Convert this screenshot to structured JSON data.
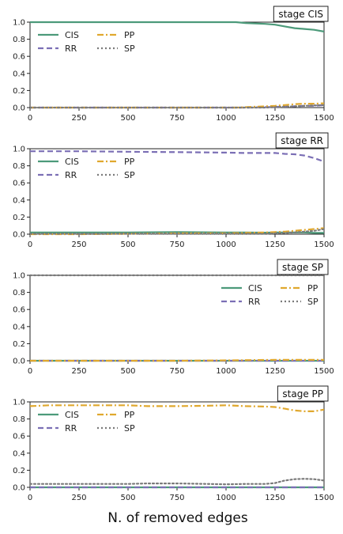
{
  "figure": {
    "xlabel": "N. of removed edges"
  },
  "colors": {
    "CIS": "#4c9a7a",
    "RR": "#7b6fb5",
    "PP": "#e0a82e",
    "SP": "#7a7a7a"
  },
  "chart_data": [
    {
      "type": "line",
      "stage_label": "stage CIS",
      "legend_position": "top-left",
      "xlim": [
        0,
        1500
      ],
      "ylim": [
        0,
        1.0
      ],
      "xticks": [
        0,
        250,
        500,
        750,
        1000,
        1250,
        1500
      ],
      "yticks": [
        0.0,
        0.2,
        0.4,
        0.6,
        0.8,
        1.0
      ],
      "xtick_labels": [
        "0",
        "250",
        "500",
        "750",
        "1000",
        "1250",
        "1500"
      ],
      "ytick_labels": [
        "0.0",
        "0.2",
        "0.4",
        "0.6",
        "0.8",
        "1.0"
      ],
      "x": [
        0,
        250,
        500,
        750,
        1000,
        1050,
        1100,
        1150,
        1200,
        1250,
        1300,
        1350,
        1400,
        1450,
        1500
      ],
      "series": [
        {
          "name": "CIS",
          "style": "solid",
          "values": [
            1.0,
            1.0,
            1.0,
            1.0,
            1.0,
            1.0,
            0.99,
            0.985,
            0.98,
            0.97,
            0.95,
            0.93,
            0.92,
            0.91,
            0.89
          ]
        },
        {
          "name": "RR",
          "style": "dashed",
          "values": [
            0.0,
            0.0,
            0.0,
            0.0,
            0.0,
            0.0,
            0.0,
            0.002,
            0.005,
            0.008,
            0.01,
            0.015,
            0.02,
            0.02,
            0.03
          ]
        },
        {
          "name": "PP",
          "style": "dashdot",
          "values": [
            0.0,
            0.0,
            0.0,
            0.0,
            0.0,
            0.0,
            0.005,
            0.01,
            0.015,
            0.02,
            0.03,
            0.04,
            0.045,
            0.045,
            0.05
          ]
        },
        {
          "name": "SP",
          "style": "dotted",
          "values": [
            0.0,
            0.0,
            0.0,
            0.0,
            0.0,
            0.0,
            0.0,
            0.0,
            0.0,
            0.005,
            0.01,
            0.015,
            0.02,
            0.025,
            0.03
          ]
        }
      ]
    },
    {
      "type": "line",
      "stage_label": "stage RR",
      "legend_position": "top-left",
      "xlim": [
        0,
        1500
      ],
      "ylim": [
        0,
        1.0
      ],
      "xticks": [
        0,
        250,
        500,
        750,
        1000,
        1250,
        1500
      ],
      "yticks": [
        0.0,
        0.2,
        0.4,
        0.6,
        0.8,
        1.0
      ],
      "xtick_labels": [
        "0",
        "250",
        "500",
        "750",
        "1000",
        "1250",
        "1500"
      ],
      "ytick_labels": [
        "0.0",
        "0.2",
        "0.4",
        "0.6",
        "0.8",
        "1.0"
      ],
      "x": [
        0,
        250,
        500,
        750,
        1000,
        1100,
        1200,
        1250,
        1300,
        1350,
        1400,
        1450,
        1500
      ],
      "series": [
        {
          "name": "CIS",
          "style": "solid",
          "values": [
            0.02,
            0.02,
            0.02,
            0.025,
            0.02,
            0.02,
            0.018,
            0.02,
            0.02,
            0.02,
            0.02,
            0.015,
            0.015
          ]
        },
        {
          "name": "RR",
          "style": "dashed",
          "values": [
            0.97,
            0.97,
            0.965,
            0.96,
            0.955,
            0.95,
            0.95,
            0.95,
            0.94,
            0.935,
            0.92,
            0.89,
            0.85
          ]
        },
        {
          "name": "PP",
          "style": "dashdot",
          "values": [
            0.0,
            0.0,
            0.005,
            0.01,
            0.01,
            0.015,
            0.02,
            0.025,
            0.03,
            0.04,
            0.05,
            0.06,
            0.07
          ]
        },
        {
          "name": "SP",
          "style": "dotted",
          "values": [
            0.005,
            0.005,
            0.005,
            0.005,
            0.005,
            0.005,
            0.005,
            0.01,
            0.015,
            0.02,
            0.03,
            0.04,
            0.06
          ]
        }
      ]
    },
    {
      "type": "line",
      "stage_label": "stage SP",
      "legend_position": "top-right",
      "xlim": [
        0,
        1500
      ],
      "ylim": [
        0,
        1.0
      ],
      "xticks": [
        0,
        250,
        500,
        750,
        1000,
        1250,
        1500
      ],
      "yticks": [
        0.0,
        0.2,
        0.4,
        0.6,
        0.8,
        1.0
      ],
      "xtick_labels": [
        "0",
        "250",
        "500",
        "750",
        "1000",
        "1250",
        "1500"
      ],
      "ytick_labels": [
        "0.0",
        "0.2",
        "0.4",
        "0.6",
        "0.8",
        "1.0"
      ],
      "x": [
        0,
        250,
        500,
        750,
        1000,
        1250,
        1500
      ],
      "series": [
        {
          "name": "CIS",
          "style": "solid",
          "values": [
            0.0,
            0.0,
            0.0,
            0.0,
            0.0,
            0.0,
            0.0
          ]
        },
        {
          "name": "RR",
          "style": "dashed",
          "values": [
            0.0,
            0.0,
            0.0,
            0.0,
            0.0,
            0.0,
            0.0
          ]
        },
        {
          "name": "PP",
          "style": "dashdot",
          "values": [
            0.0,
            0.0,
            0.0,
            0.0,
            0.005,
            0.01,
            0.01
          ]
        },
        {
          "name": "SP",
          "style": "dotted",
          "values": [
            1.0,
            1.0,
            1.0,
            1.0,
            1.0,
            1.0,
            1.0
          ]
        }
      ]
    },
    {
      "type": "line",
      "stage_label": "stage PP",
      "legend_position": "top-left",
      "xlim": [
        0,
        1500
      ],
      "ylim": [
        0,
        1.0
      ],
      "xticks": [
        0,
        250,
        500,
        750,
        1000,
        1250,
        1500
      ],
      "yticks": [
        0.0,
        0.2,
        0.4,
        0.6,
        0.8,
        1.0
      ],
      "xtick_labels": [
        "0",
        "250",
        "500",
        "750",
        "1000",
        "1250",
        "1500"
      ],
      "ytick_labels": [
        "0.0",
        "0.2",
        "0.4",
        "0.6",
        "0.8",
        "1.0"
      ],
      "x": [
        0,
        100,
        250,
        500,
        600,
        750,
        900,
        1000,
        1100,
        1200,
        1250,
        1300,
        1350,
        1400,
        1450,
        1500
      ],
      "series": [
        {
          "name": "CIS",
          "style": "solid",
          "values": [
            0.0,
            0.0,
            0.0,
            0.0,
            0.0,
            0.0,
            0.0,
            0.0,
            0.0,
            0.0,
            0.0,
            0.0,
            0.0,
            0.0,
            0.0,
            0.0
          ]
        },
        {
          "name": "RR",
          "style": "dashed",
          "values": [
            0.0,
            0.0,
            0.0,
            0.0,
            0.0,
            0.0,
            0.0,
            0.0,
            0.0,
            0.0,
            0.0,
            0.0,
            0.0,
            0.0,
            0.0,
            0.0
          ]
        },
        {
          "name": "PP",
          "style": "dashdot",
          "values": [
            0.95,
            0.96,
            0.96,
            0.96,
            0.95,
            0.95,
            0.955,
            0.96,
            0.95,
            0.945,
            0.94,
            0.92,
            0.9,
            0.89,
            0.89,
            0.91
          ]
        },
        {
          "name": "SP",
          "style": "dotted",
          "values": [
            0.04,
            0.04,
            0.04,
            0.04,
            0.045,
            0.045,
            0.04,
            0.035,
            0.04,
            0.04,
            0.05,
            0.08,
            0.095,
            0.1,
            0.095,
            0.08
          ]
        }
      ]
    }
  ]
}
